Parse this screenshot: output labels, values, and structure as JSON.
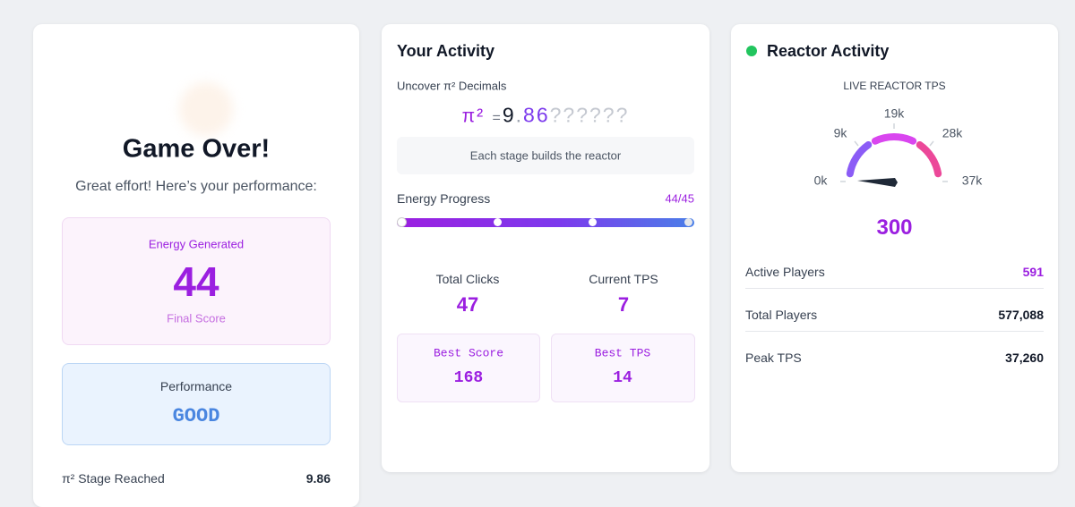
{
  "left_card": {
    "title": "Game Over!",
    "subtitle": "Great effort! Here’s your performance:",
    "energy": {
      "label": "Energy Generated",
      "value": "44",
      "caption": "Final Score"
    },
    "performance": {
      "label": "Performance",
      "value": "GOOD"
    },
    "stage": {
      "label": "π² Stage Reached",
      "value": "9.86"
    }
  },
  "activity": {
    "title": "Your Activity",
    "decimals": {
      "label": "Uncover π² Decimals",
      "symbol": "π²",
      "equals": "=",
      "known_integer": "9",
      "point": ".",
      "known_decimals": "86",
      "hidden": "??????"
    },
    "note": "Each stage builds the reactor",
    "progress": {
      "label": "Energy Progress",
      "value": "44/45"
    },
    "stats": [
      {
        "label": "Total Clicks",
        "value": "47"
      },
      {
        "label": "Current TPS",
        "value": "7"
      }
    ],
    "bests": [
      {
        "label": "Best Score",
        "value": "168"
      },
      {
        "label": "Best TPS",
        "value": "14"
      }
    ]
  },
  "reactor": {
    "title": "Reactor Activity",
    "gauge": {
      "label": "LIVE REACTOR TPS",
      "ticks": [
        "0k",
        "9k",
        "19k",
        "28k",
        "37k"
      ],
      "value": "300"
    },
    "rows": [
      {
        "label": "Active Players",
        "value": "591"
      },
      {
        "label": "Total Players",
        "value": "577,088"
      },
      {
        "label": "Peak TPS",
        "value": "37,260"
      }
    ]
  }
}
